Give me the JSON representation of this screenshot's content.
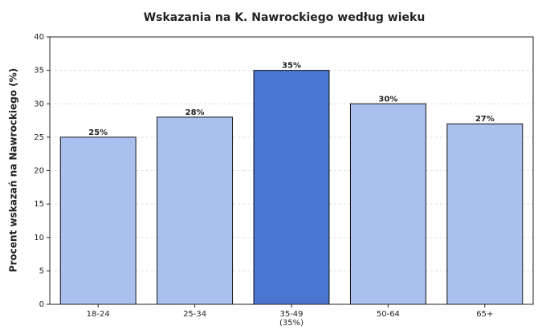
{
  "chart_data": {
    "type": "bar",
    "title": "Wskazania na K. Nawrockiego według wieku",
    "ylabel": "Procent wskazań na Nawrockiego (%)",
    "categories": [
      "18-24",
      "25-34",
      "35-49\n(35%)",
      "50-64",
      "65+"
    ],
    "values": [
      25,
      28,
      35,
      30,
      27
    ],
    "value_labels": [
      "25%",
      "28%",
      "35%",
      "30%",
      "27%"
    ],
    "colors": [
      "#aac0ef",
      "#aac0ef",
      "#4a76d2",
      "#aac0ef",
      "#aac0ef"
    ],
    "ylim": [
      0,
      40
    ],
    "yticks": [
      0,
      5,
      10,
      15,
      20,
      25,
      30,
      35,
      40
    ],
    "grid": true
  }
}
